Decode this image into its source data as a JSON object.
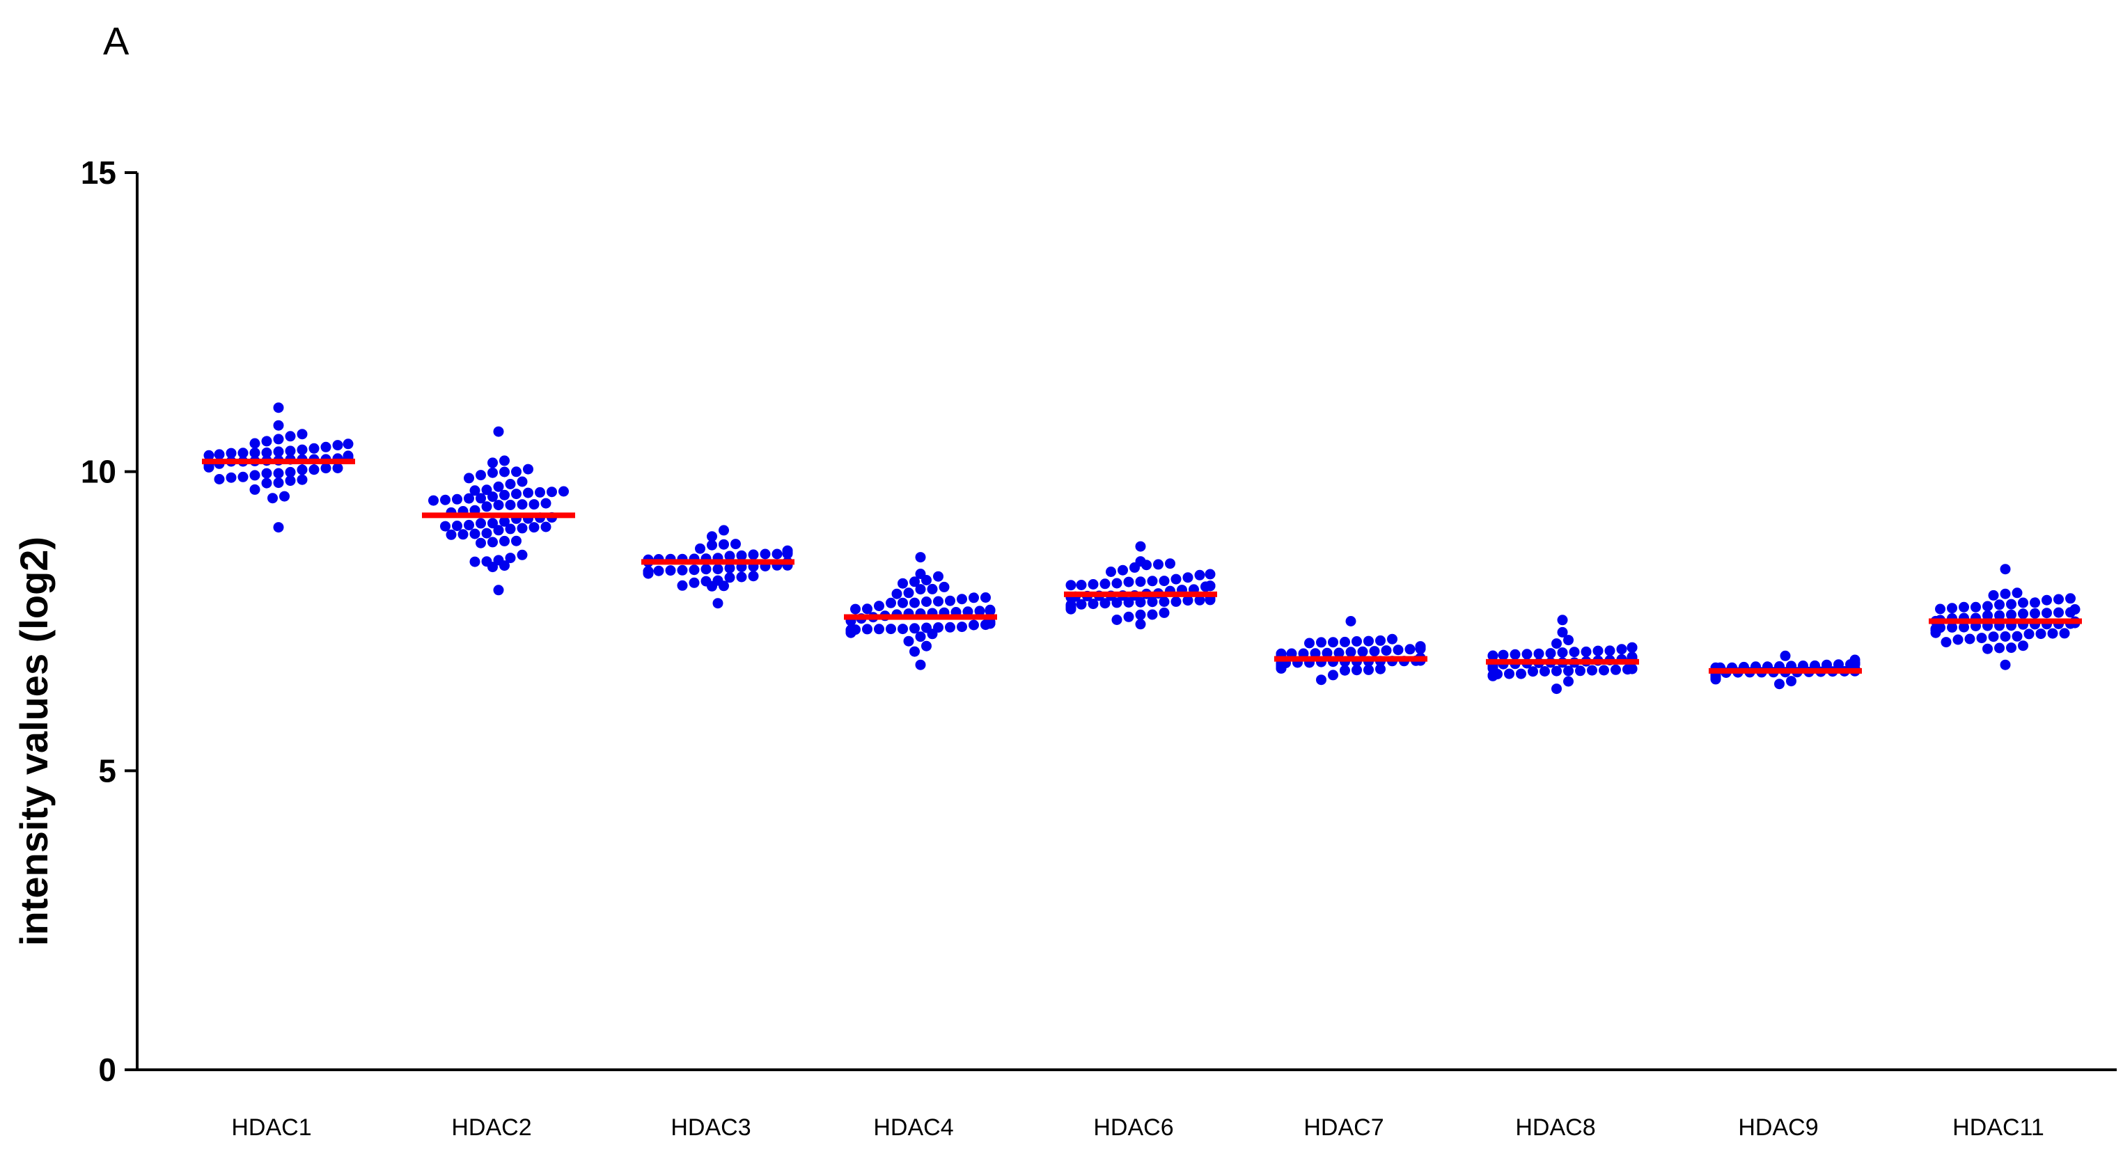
{
  "panel_label": "A",
  "colors": {
    "point": "#0000ee",
    "median": "#ff0000",
    "axis": "#000000"
  },
  "chart_data": {
    "type": "scatter",
    "subtype": "beeswarm-dot-plot",
    "title": "",
    "xlabel": "",
    "ylabel": "intensity values (log2)",
    "ylim": [
      0,
      15
    ],
    "yticks": [
      0,
      5,
      10,
      15
    ],
    "grid": false,
    "legend": "none",
    "categories": [
      "HDAC1",
      "HDAC2",
      "HDAC3",
      "HDAC4",
      "HDAC6",
      "HDAC7",
      "HDAC8",
      "HDAC9",
      "HDAC11"
    ],
    "groups": [
      {
        "category": "HDAC1",
        "median": 10.17,
        "min": 9.07,
        "max": 11.07,
        "n": 66
      },
      {
        "category": "HDAC2",
        "median": 9.27,
        "min": 8.02,
        "max": 10.67,
        "n": 66
      },
      {
        "category": "HDAC3",
        "median": 8.49,
        "min": 7.8,
        "max": 9.02,
        "n": 66
      },
      {
        "category": "HDAC4",
        "median": 7.57,
        "min": 6.77,
        "max": 8.57,
        "n": 66
      },
      {
        "category": "HDAC6",
        "median": 7.95,
        "min": 7.45,
        "max": 8.75,
        "n": 66
      },
      {
        "category": "HDAC7",
        "median": 6.87,
        "min": 6.52,
        "max": 7.5,
        "n": 66
      },
      {
        "category": "HDAC8",
        "median": 6.82,
        "min": 6.37,
        "max": 7.52,
        "n": 66
      },
      {
        "category": "HDAC9",
        "median": 6.67,
        "min": 6.45,
        "max": 6.92,
        "n": 66
      },
      {
        "category": "HDAC11",
        "median": 7.5,
        "min": 6.77,
        "max": 8.37,
        "n": 66
      }
    ]
  }
}
